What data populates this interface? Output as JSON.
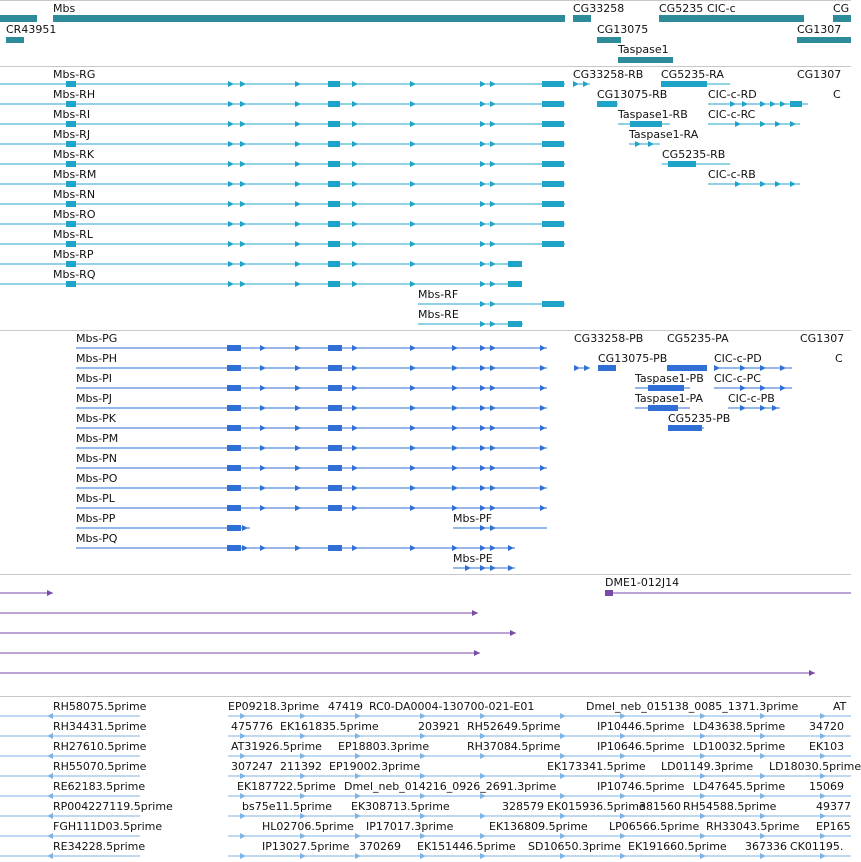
{
  "colors": {
    "gene": "#2e8b9a",
    "transcript": "#1fa4c9",
    "protein": "#2f6fd6",
    "clone": "#7a4aa8",
    "est": "#7fb3e0",
    "separator": "#c8c8c8"
  },
  "tracks": {
    "genes": {
      "items": [
        {
          "name": "Mbs"
        },
        {
          "name": "CG33258"
        },
        {
          "name": "CG5235"
        },
        {
          "name": "CIC-c"
        },
        {
          "name": "CG"
        },
        {
          "name": "CR43951"
        },
        {
          "name": "CG13075"
        },
        {
          "name": "CG1307"
        },
        {
          "name": "Taspase1"
        }
      ]
    },
    "transcripts": {
      "mbs_labels": [
        "Mbs-RG",
        "Mbs-RH",
        "Mbs-RI",
        "Mbs-RJ",
        "Mbs-RK",
        "Mbs-RM",
        "Mbs-RN",
        "Mbs-RO",
        "Mbs-RL",
        "Mbs-RP",
        "Mbs-RQ"
      ],
      "short_labels": [
        "Mbs-RF",
        "Mbs-RE"
      ],
      "other_labels": [
        "CG33258-RB",
        "CG5235-RA",
        "CG1307",
        "CG13075-RB",
        "CIC-c-RD",
        "C",
        "Taspase1-RB",
        "CIC-c-RC",
        "Taspase1-RA",
        "CG5235-RB",
        "CIC-c-RB"
      ]
    },
    "proteins": {
      "mbs_labels": [
        "Mbs-PG",
        "Mbs-PH",
        "Mbs-PI",
        "Mbs-PJ",
        "Mbs-PK",
        "Mbs-PM",
        "Mbs-PN",
        "Mbs-PO",
        "Mbs-PL",
        "Mbs-PP",
        "Mbs-PQ"
      ],
      "short_labels": [
        "Mbs-PF",
        "Mbs-PE"
      ],
      "other_labels": [
        "CG33258-PB",
        "CG5235-PA",
        "CG1307",
        "CG13075-PB",
        "CIC-c-PD",
        "C",
        "Taspase1-PB",
        "CIC-c-PC",
        "Taspase1-PA",
        "CIC-c-PB",
        "CG5235-PB"
      ]
    },
    "clones": {
      "labels": [
        "DME1-012J14"
      ]
    },
    "ests": {
      "rows": [
        [
          "RH58075.5prime",
          "EP09218.3prime",
          "47419",
          "RC0-DA0004-130700-021-E01",
          "Dmel_neb_015138_0085_1371.3prime",
          "AT"
        ],
        [
          "RH34431.5prime",
          "475776",
          "EK161835.5prime",
          "203921",
          "RH52649.5prime",
          "IP10446.5prime",
          "LD43638.5prime",
          "34720"
        ],
        [
          "RH27610.5prime",
          "AT31926.5prime",
          "EP18803.3prime",
          "RH37084.5prime",
          "IP10646.5prime",
          "LD10032.5prime",
          "EK103"
        ],
        [
          "RH55070.5prime",
          "307247",
          "211392",
          "EP19002.3prime",
          "EK173341.5prime",
          "LD01149.3prime",
          "LD18030.5prime"
        ],
        [
          "RE62183.5prime",
          "EK187722.5prime",
          "Dmel_neb_014216_0926_2691.3prime",
          "IP10746.5prime",
          "LD47645.5prime",
          "15069"
        ],
        [
          "RP004227119.5prime",
          "bs75e11.5prime",
          "EK308713.5prime",
          "328579",
          "EK015936.5prime",
          "381560",
          "RH54588.5prime",
          "49377"
        ],
        [
          "FGH111D03.5prime",
          "HL02706.5prime",
          "IP17017.3prime",
          "EK136809.5prime",
          "LP06566.5prime",
          "RH33043.5prime",
          "EP165"
        ],
        [
          "RE34228.5prime",
          "IP13027.5prime",
          "370269",
          "EK151446.5prime",
          "SD10650.3prime",
          "EK191660.5prime",
          "367336",
          "CK01195."
        ]
      ]
    }
  }
}
